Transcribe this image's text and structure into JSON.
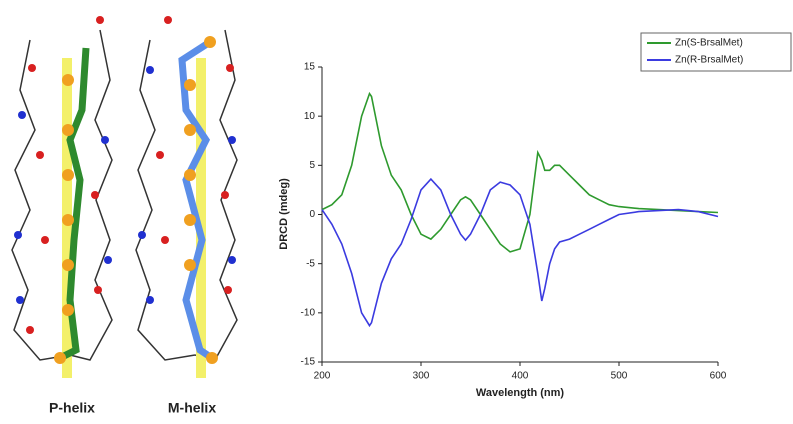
{
  "chart_data": {
    "type": "line",
    "x": [
      200,
      210,
      220,
      230,
      240,
      248,
      250,
      260,
      270,
      280,
      290,
      300,
      310,
      320,
      330,
      340,
      345,
      350,
      360,
      370,
      380,
      390,
      400,
      410,
      418,
      422,
      425,
      430,
      435,
      440,
      450,
      460,
      470,
      480,
      490,
      500,
      520,
      540,
      560,
      580,
      600
    ],
    "series": [
      {
        "name": "Zn(S-BrsalMet)",
        "color": "#2e9a2e",
        "values": [
          0.5,
          1,
          2,
          5,
          10,
          12.3,
          12,
          7,
          4,
          2.5,
          0,
          -2,
          -2.5,
          -1.5,
          0,
          1.5,
          1.8,
          1.5,
          0,
          -1.5,
          -3,
          -3.8,
          -3.5,
          0,
          6.3,
          5.5,
          4.5,
          4.5,
          5,
          5,
          4,
          3,
          2,
          1.5,
          1,
          0.8,
          0.6,
          0.5,
          0.4,
          0.3,
          0.2
        ]
      },
      {
        "name": "Zn(R-BrsalMet)",
        "color": "#3b3be0",
        "values": [
          0.5,
          -1,
          -3,
          -6,
          -10,
          -11.3,
          -11,
          -7,
          -4.5,
          -3,
          -0.5,
          2.5,
          3.6,
          2.5,
          0,
          -2,
          -2.6,
          -2,
          0,
          2.5,
          3.3,
          3,
          2,
          -1,
          -6,
          -8.8,
          -7.5,
          -5,
          -3.5,
          -2.8,
          -2.5,
          -2,
          -1.5,
          -1,
          -0.5,
          0,
          0.3,
          0.4,
          0.5,
          0.3,
          -0.2
        ]
      }
    ],
    "xlabel": "Wavelength (nm)",
    "ylabel": "DRCD (mdeg)",
    "xlim": [
      200,
      600
    ],
    "xticks": [
      200,
      300,
      400,
      500,
      600
    ],
    "ylim": [
      -15,
      15
    ],
    "yticks": [
      -15,
      -10,
      -5,
      0,
      5,
      10,
      15
    ],
    "legend": "top-right"
  },
  "helix_labels": [
    {
      "text": "P-helix",
      "color": "#2e9a2e"
    },
    {
      "text": "M-helix",
      "color": "#2b3ddb"
    }
  ]
}
